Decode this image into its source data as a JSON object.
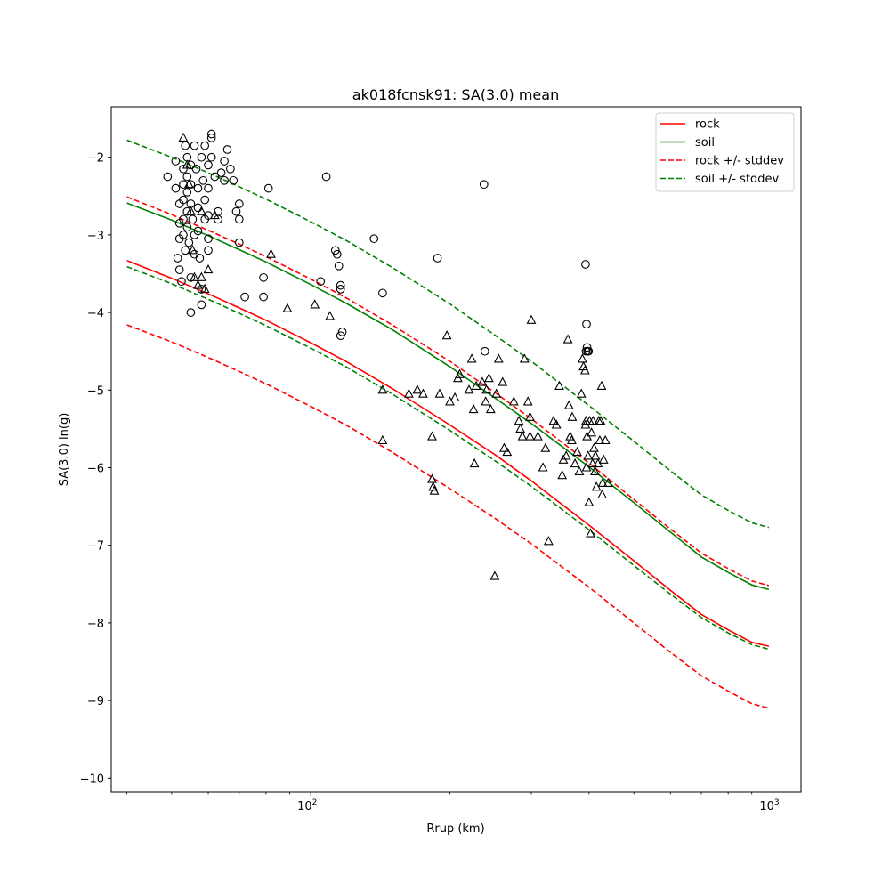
{
  "chart_data": {
    "type": "scatter",
    "title": "ak018fcnsk91: SA(3.0) mean",
    "xlabel": "Rrup (km)",
    "ylabel": "SA(3.0) ln(g)",
    "x_scale": "log",
    "xlim": [
      37,
      1150
    ],
    "ylim": [
      -10.18,
      -1.35
    ],
    "x_ticks": [
      {
        "value": 100,
        "base": "10",
        "exp": "2"
      },
      {
        "value": 1000,
        "base": "10",
        "exp": "3"
      }
    ],
    "y_ticks": [
      -2,
      -3,
      -4,
      -5,
      -6,
      -7,
      -8,
      -9,
      -10
    ],
    "y_tick_labels": [
      "−2",
      "−3",
      "−4",
      "−5",
      "−6",
      "−7",
      "−8",
      "−9",
      "−10"
    ],
    "grid": false,
    "legend_position": "upper right",
    "legend": [
      {
        "label": "rock",
        "color": "#ff0000",
        "style": "solid"
      },
      {
        "label": "soil",
        "color": "#008000",
        "style": "solid"
      },
      {
        "label": "rock +/- stddev",
        "color": "#ff0000",
        "style": "dashed"
      },
      {
        "label": "soil +/- stddev",
        "color": "#008000",
        "style": "dashed"
      }
    ],
    "lines_x": [
      40,
      50,
      60,
      70,
      80,
      100,
      120,
      150,
      200,
      250,
      300,
      400,
      500,
      600,
      700,
      800,
      900,
      980
    ],
    "lines": [
      {
        "name": "rock",
        "color": "#ff0000",
        "dash": false,
        "y": [
          -3.33,
          -3.56,
          -3.76,
          -3.94,
          -4.1,
          -4.39,
          -4.64,
          -4.98,
          -5.45,
          -5.83,
          -6.17,
          -6.74,
          -7.2,
          -7.58,
          -7.89,
          -8.09,
          -8.25,
          -8.3
        ]
      },
      {
        "name": "soil",
        "color": "#008000",
        "dash": false,
        "y": [
          -2.59,
          -2.81,
          -3.01,
          -3.19,
          -3.35,
          -3.64,
          -3.89,
          -4.22,
          -4.7,
          -5.1,
          -5.43,
          -5.99,
          -6.45,
          -6.83,
          -7.15,
          -7.35,
          -7.51,
          -7.57
        ]
      },
      {
        "name": "rock +/- stddev",
        "color": "#ff0000",
        "dash": true,
        "y": [
          -2.51,
          -2.74,
          -2.94,
          -3.12,
          -3.28,
          -3.57,
          -3.82,
          -4.16,
          -4.63,
          -5.03,
          -5.37,
          -5.94,
          -6.41,
          -6.79,
          -7.1,
          -7.3,
          -7.46,
          -7.52
        ]
      },
      {
        "name": "rock +/- stddev",
        "color": "#ff0000",
        "dash": true,
        "y": [
          -4.16,
          -4.38,
          -4.58,
          -4.76,
          -4.92,
          -5.21,
          -5.46,
          -5.8,
          -6.27,
          -6.65,
          -6.98,
          -7.54,
          -8.0,
          -8.38,
          -8.68,
          -8.88,
          -9.04,
          -9.1
        ]
      },
      {
        "name": "soil +/- stddev",
        "color": "#008000",
        "dash": true,
        "y": [
          -1.78,
          -2.0,
          -2.2,
          -2.38,
          -2.54,
          -2.83,
          -3.08,
          -3.42,
          -3.89,
          -4.29,
          -4.63,
          -5.2,
          -5.66,
          -6.04,
          -6.35,
          -6.55,
          -6.71,
          -6.77
        ]
      },
      {
        "name": "soil +/- stddev",
        "color": "#008000",
        "dash": true,
        "y": [
          -3.41,
          -3.63,
          -3.83,
          -4.01,
          -4.17,
          -4.46,
          -4.71,
          -5.05,
          -5.52,
          -5.91,
          -6.24,
          -6.8,
          -7.26,
          -7.63,
          -7.93,
          -8.13,
          -8.28,
          -8.34
        ]
      }
    ],
    "rock_points": [
      [
        49,
        -2.25
      ],
      [
        51,
        -2.05
      ],
      [
        51,
        -2.4
      ],
      [
        52,
        -2.6
      ],
      [
        52,
        -2.85
      ],
      [
        52,
        -3.05
      ],
      [
        51.5,
        -3.3
      ],
      [
        52,
        -3.45
      ],
      [
        52.5,
        -3.6
      ],
      [
        53,
        -2.15
      ],
      [
        53,
        -2.35
      ],
      [
        53,
        -2.55
      ],
      [
        53,
        -2.8
      ],
      [
        53,
        -3.0
      ],
      [
        53.5,
        -3.2
      ],
      [
        53.5,
        -1.85
      ],
      [
        54,
        -2.0
      ],
      [
        54,
        -2.25
      ],
      [
        54,
        -2.45
      ],
      [
        54,
        -2.7
      ],
      [
        54,
        -2.9
      ],
      [
        54.5,
        -3.1
      ],
      [
        55,
        -3.55
      ],
      [
        55,
        -4.0
      ],
      [
        55,
        -2.1
      ],
      [
        55,
        -2.35
      ],
      [
        55,
        -2.6
      ],
      [
        55.5,
        -2.8
      ],
      [
        56,
        -3.0
      ],
      [
        56,
        -3.25
      ],
      [
        56,
        -1.85
      ],
      [
        56.5,
        -2.15
      ],
      [
        57,
        -2.4
      ],
      [
        57,
        -2.65
      ],
      [
        57,
        -2.95
      ],
      [
        57.5,
        -3.3
      ],
      [
        58,
        -3.7
      ],
      [
        58,
        -3.9
      ],
      [
        58,
        -2.0
      ],
      [
        58.5,
        -2.3
      ],
      [
        59,
        -2.55
      ],
      [
        59,
        -2.8
      ],
      [
        59,
        -1.85
      ],
      [
        60,
        -2.1
      ],
      [
        60,
        -2.4
      ],
      [
        60,
        -2.75
      ],
      [
        60,
        -3.05
      ],
      [
        60,
        -3.2
      ],
      [
        61,
        -1.7
      ],
      [
        61,
        -1.75
      ],
      [
        61,
        -2.0
      ],
      [
        62,
        -2.25
      ],
      [
        63,
        -2.7
      ],
      [
        63,
        -2.8
      ],
      [
        64,
        -2.2
      ],
      [
        65,
        -2.05
      ],
      [
        65,
        -2.3
      ],
      [
        66,
        -1.9
      ],
      [
        67,
        -2.15
      ],
      [
        68,
        -2.3
      ],
      [
        69,
        -2.7
      ],
      [
        70,
        -2.6
      ],
      [
        70,
        -2.8
      ],
      [
        70,
        -3.1
      ],
      [
        72,
        -3.8
      ],
      [
        79,
        -3.55
      ],
      [
        79,
        -3.8
      ],
      [
        81,
        -2.4
      ],
      [
        105,
        -3.6
      ],
      [
        108,
        -2.25
      ],
      [
        113,
        -3.2
      ],
      [
        114,
        -3.25
      ],
      [
        115,
        -3.4
      ],
      [
        116,
        -3.65
      ],
      [
        116,
        -3.7
      ],
      [
        117,
        -4.25
      ],
      [
        116,
        -4.3
      ],
      [
        137,
        -3.05
      ],
      [
        143,
        -3.75
      ],
      [
        188,
        -3.3
      ],
      [
        237,
        -2.35
      ],
      [
        238,
        -4.5
      ],
      [
        393,
        -3.38
      ],
      [
        395,
        -4.15
      ],
      [
        396,
        -4.45
      ],
      [
        394,
        -4.5
      ],
      [
        397,
        -4.5
      ],
      [
        399,
        -4.5
      ]
    ],
    "soil_points": [
      [
        53,
        -1.75
      ],
      [
        54,
        -2.1
      ],
      [
        54.5,
        -2.35
      ],
      [
        55,
        -2.7
      ],
      [
        55.5,
        -3.2
      ],
      [
        56,
        -3.55
      ],
      [
        57,
        -3.65
      ],
      [
        58,
        -2.7
      ],
      [
        58,
        -3.55
      ],
      [
        59,
        -3.7
      ],
      [
        60,
        -3.45
      ],
      [
        62,
        -2.75
      ],
      [
        82,
        -3.25
      ],
      [
        89,
        -3.95
      ],
      [
        102,
        -3.9
      ],
      [
        110,
        -4.05
      ],
      [
        143,
        -5.0
      ],
      [
        143,
        -5.65
      ],
      [
        163,
        -5.05
      ],
      [
        170,
        -5.0
      ],
      [
        175,
        -5.05
      ],
      [
        183,
        -5.6
      ],
      [
        183,
        -6.15
      ],
      [
        184,
        -6.25
      ],
      [
        185,
        -6.3
      ],
      [
        190,
        -5.05
      ],
      [
        197,
        -4.3
      ],
      [
        200,
        -5.15
      ],
      [
        205,
        -5.1
      ],
      [
        208,
        -4.85
      ],
      [
        210,
        -4.8
      ],
      [
        220,
        -5.0
      ],
      [
        223,
        -4.6
      ],
      [
        225,
        -5.25
      ],
      [
        226,
        -5.95
      ],
      [
        228,
        -4.95
      ],
      [
        235,
        -4.9
      ],
      [
        239,
        -5.15
      ],
      [
        240,
        -5.0
      ],
      [
        243,
        -4.85
      ],
      [
        245,
        -5.25
      ],
      [
        250,
        -7.4
      ],
      [
        252,
        -5.05
      ],
      [
        255,
        -4.6
      ],
      [
        260,
        -4.9
      ],
      [
        262,
        -5.75
      ],
      [
        266,
        -5.8
      ],
      [
        275,
        -5.15
      ],
      [
        282,
        -5.4
      ],
      [
        284,
        -5.5
      ],
      [
        287,
        -5.6
      ],
      [
        290,
        -4.6
      ],
      [
        295,
        -5.15
      ],
      [
        298,
        -5.35
      ],
      [
        298,
        -5.6
      ],
      [
        300,
        -4.1
      ],
      [
        310,
        -5.6
      ],
      [
        318,
        -6.0
      ],
      [
        322,
        -5.75
      ],
      [
        327,
        -6.95
      ],
      [
        335,
        -5.4
      ],
      [
        340,
        -5.45
      ],
      [
        345,
        -4.95
      ],
      [
        350,
        -6.1
      ],
      [
        352,
        -5.9
      ],
      [
        357,
        -5.85
      ],
      [
        360,
        -4.35
      ],
      [
        362,
        -5.2
      ],
      [
        364,
        -5.6
      ],
      [
        367,
        -5.65
      ],
      [
        368,
        -5.35
      ],
      [
        373,
        -5.95
      ],
      [
        377,
        -5.8
      ],
      [
        381,
        -6.05
      ],
      [
        385,
        -5.05
      ],
      [
        387,
        -4.6
      ],
      [
        389,
        -4.7
      ],
      [
        392,
        -4.75
      ],
      [
        393,
        -5.45
      ],
      [
        394,
        -5.4
      ],
      [
        395,
        -6.0
      ],
      [
        396,
        -5.6
      ],
      [
        398,
        -5.85
      ],
      [
        400,
        -6.45
      ],
      [
        401,
        -5.4
      ],
      [
        403,
        -6.85
      ],
      [
        405,
        -5.55
      ],
      [
        407,
        -5.95
      ],
      [
        408,
        -5.4
      ],
      [
        410,
        -5.75
      ],
      [
        412,
        -6.05
      ],
      [
        413,
        -5.85
      ],
      [
        415,
        -6.25
      ],
      [
        418,
        -5.95
      ],
      [
        420,
        -5.4
      ],
      [
        422,
        -5.65
      ],
      [
        424,
        -5.4
      ],
      [
        426,
        -4.95
      ],
      [
        427,
        -6.35
      ],
      [
        428,
        -6.2
      ],
      [
        430,
        -5.9
      ],
      [
        434,
        -5.65
      ],
      [
        440,
        -6.2
      ]
    ]
  }
}
